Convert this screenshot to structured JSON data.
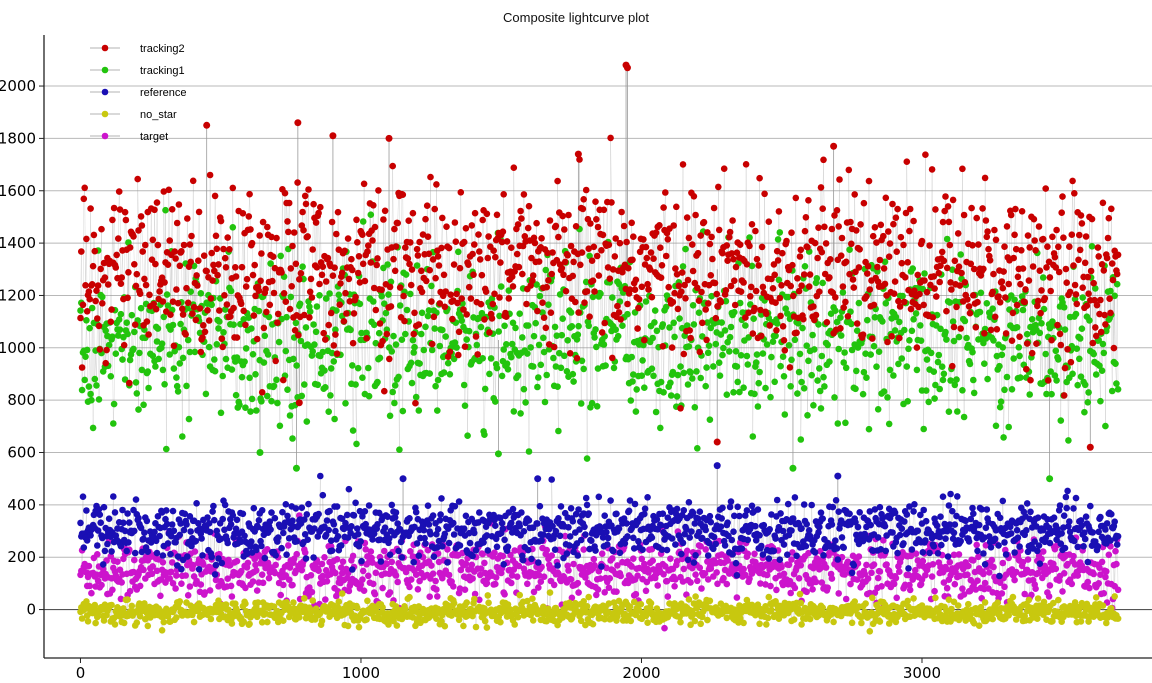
{
  "chart_data": {
    "type": "scatter",
    "title": "Composite lightcurve plot",
    "xlabel": "",
    "ylabel": "",
    "xlim": [
      -130,
      3820
    ],
    "ylim": [
      -185,
      2195
    ],
    "x_ticks": [
      0,
      1000,
      2000,
      3000
    ],
    "y_ticks": [
      0,
      200,
      400,
      600,
      800,
      1000,
      1200,
      1400,
      1600,
      1800,
      2000
    ],
    "grid": "horizontal",
    "legend_position": "top-left",
    "x_range_observed": [
      0,
      3700
    ],
    "series": [
      {
        "name": "tracking2",
        "color": "#c80000",
        "mean": 1300,
        "spread": 160,
        "outliers": [
          {
            "x": 1945,
            "y": 2080
          },
          {
            "x": 1950,
            "y": 2070
          },
          {
            "x": 450,
            "y": 1850
          },
          {
            "x": 775,
            "y": 1860
          },
          {
            "x": 900,
            "y": 1810
          },
          {
            "x": 1100,
            "y": 1800
          },
          {
            "x": 1775,
            "y": 1740
          },
          {
            "x": 2685,
            "y": 1770
          },
          {
            "x": 780,
            "y": 790
          },
          {
            "x": 2270,
            "y": 640
          },
          {
            "x": 3600,
            "y": 620
          }
        ]
      },
      {
        "name": "tracking1",
        "color": "#22c40d",
        "mean": 1030,
        "spread": 150,
        "outliers": [
          {
            "x": 770,
            "y": 540
          },
          {
            "x": 3455,
            "y": 500
          },
          {
            "x": 2540,
            "y": 540
          },
          {
            "x": 640,
            "y": 600
          },
          {
            "x": 1490,
            "y": 595
          }
        ]
      },
      {
        "name": "reference",
        "color": "#1a0fb4",
        "mean": 300,
        "spread": 55,
        "outliers": [
          {
            "x": 2270,
            "y": 550
          },
          {
            "x": 2700,
            "y": 510
          },
          {
            "x": 1150,
            "y": 500
          },
          {
            "x": 1630,
            "y": 500
          }
        ]
      },
      {
        "name": "no_star",
        "color": "#c8c80f",
        "mean": -10,
        "spread": 22,
        "outliers": []
      },
      {
        "name": "target",
        "color": "#cc14cc",
        "mean": 150,
        "spread": 55,
        "outliers": []
      }
    ]
  }
}
